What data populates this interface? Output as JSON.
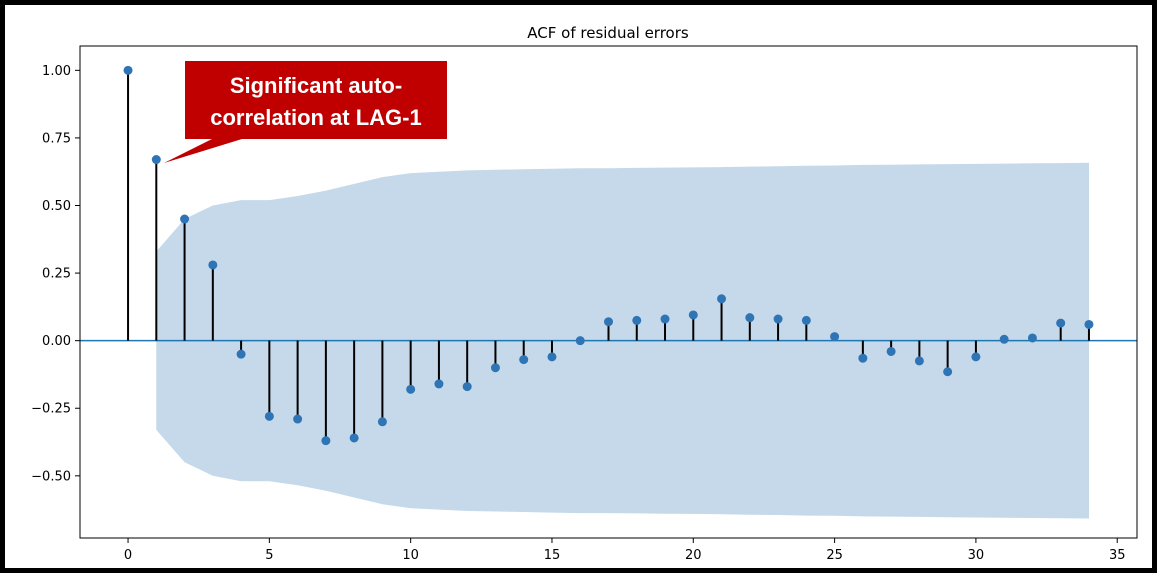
{
  "chart_data": {
    "type": "stem",
    "title": "ACF of residual errors",
    "xlabel": "",
    "ylabel": "",
    "xlim": [
      -1.7,
      35.7
    ],
    "ylim": [
      -0.73,
      1.09
    ],
    "x_ticks": [
      0,
      5,
      10,
      15,
      20,
      25,
      30,
      35
    ],
    "y_ticks": [
      1.0,
      0.75,
      0.5,
      0.25,
      0.0,
      -0.25,
      -0.5
    ],
    "x_tick_labels": [
      "0",
      "5",
      "10",
      "15",
      "20",
      "25",
      "30",
      "35"
    ],
    "y_tick_labels": [
      "1.00",
      "0.75",
      "0.50",
      "0.25",
      "0.00",
      "−0.25",
      "−0.50"
    ],
    "lags": [
      0,
      1,
      2,
      3,
      4,
      5,
      6,
      7,
      8,
      9,
      10,
      11,
      12,
      13,
      14,
      15,
      16,
      17,
      18,
      19,
      20,
      21,
      22,
      23,
      24,
      25,
      26,
      27,
      28,
      29,
      30,
      31,
      32,
      33,
      34
    ],
    "acf": [
      1.0,
      0.67,
      0.45,
      0.28,
      -0.05,
      -0.28,
      -0.29,
      -0.37,
      -0.36,
      -0.3,
      -0.18,
      -0.16,
      -0.17,
      -0.1,
      -0.07,
      -0.06,
      0.0,
      0.07,
      0.075,
      0.08,
      0.095,
      0.155,
      0.085,
      0.08,
      0.075,
      0.015,
      -0.065,
      -0.04,
      -0.075,
      -0.115,
      -0.06,
      0.005,
      0.01,
      0.065,
      0.06
    ],
    "confidence_band": [
      0.0,
      0.33,
      0.45,
      0.5,
      0.52,
      0.52,
      0.535,
      0.555,
      0.58,
      0.605,
      0.62,
      0.625,
      0.63,
      0.632,
      0.634,
      0.636,
      0.638,
      0.638,
      0.639,
      0.64,
      0.641,
      0.642,
      0.644,
      0.645,
      0.647,
      0.648,
      0.65,
      0.651,
      0.652,
      0.653,
      0.654,
      0.655,
      0.656,
      0.657,
      0.658
    ],
    "grid": false,
    "colors": {
      "band": "#c5d9ea",
      "marker": "#2f75b5",
      "stem": "#000000",
      "zero_line": "#1f77b4",
      "callout": "#c00000"
    },
    "annotation": {
      "text_line1": "Significant auto-",
      "text_line2": "correlation at LAG-1",
      "points_to_lag": 1
    }
  }
}
